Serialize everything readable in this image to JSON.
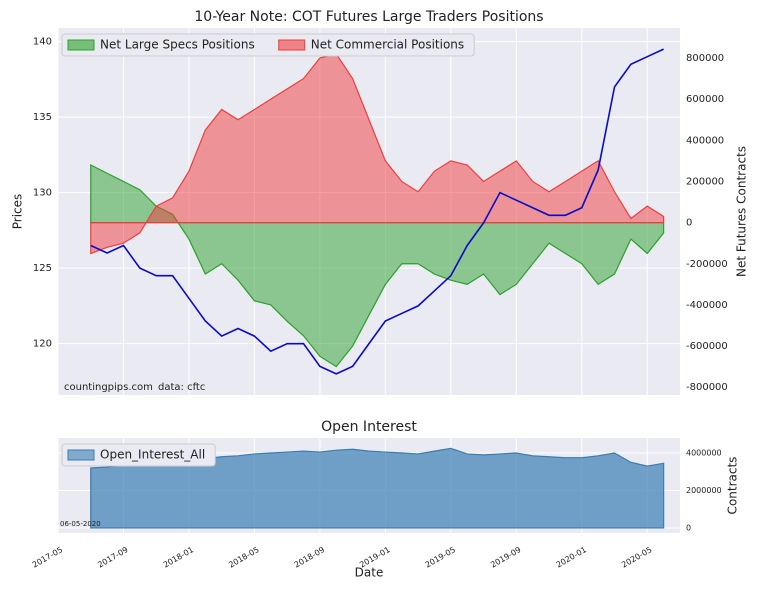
{
  "chart_data": [
    {
      "type": "area_line",
      "title": "10-Year Note: COT Futures Large Traders Positions",
      "ylabel": "Prices",
      "y2label": "Net Futures Contracts",
      "annotations": [
        "countingpips.com",
        "data: cftc"
      ],
      "legend": "upper left",
      "grid": true,
      "x": [
        "2017-07",
        "2017-08",
        "2017-09",
        "2017-10",
        "2017-11",
        "2017-12",
        "2018-01",
        "2018-02",
        "2018-03",
        "2018-04",
        "2018-05",
        "2018-06",
        "2018-07",
        "2018-08",
        "2018-09",
        "2018-10",
        "2018-11",
        "2018-12",
        "2019-01",
        "2019-02",
        "2019-03",
        "2019-04",
        "2019-05",
        "2019-06",
        "2019-07",
        "2019-08",
        "2019-09",
        "2019-10",
        "2019-11",
        "2019-12",
        "2020-01",
        "2020-02",
        "2020-03",
        "2020-04",
        "2020-05",
        "2020-06"
      ],
      "xlim": [
        "2017-05",
        "2020-07"
      ],
      "xticks": [
        "2017-05",
        "2017-09",
        "2018-01",
        "2018-05",
        "2018-09",
        "2019-01",
        "2019-05",
        "2019-09",
        "2020-01",
        "2020-05"
      ],
      "ylim": [
        116.6,
        140.9
      ],
      "yticks": [
        120,
        125,
        130,
        135,
        140
      ],
      "y2lim": [
        -838000,
        946000
      ],
      "y2ticks": [
        -800000,
        -600000,
        -400000,
        -200000,
        0,
        200000,
        400000,
        600000,
        800000
      ],
      "series": [
        {
          "kind": "line",
          "color": "#0a0ac8",
          "values": [
            126.5,
            126,
            126.5,
            125,
            124.5,
            124.5,
            123,
            121.5,
            120.5,
            121,
            120.5,
            119.5,
            120,
            120,
            118.5,
            118,
            118.5,
            120,
            121.5,
            122,
            122.5,
            123.5,
            124.5,
            126.5,
            128,
            130,
            129.5,
            129,
            128.5,
            128.5,
            129,
            131.5,
            137,
            138.5,
            139,
            139.5
          ]
        },
        {
          "kind": "area",
          "name": "Net Large Specs Positions",
          "color": "#2ca02c",
          "axis": "y2",
          "values": [
            280000,
            240000,
            200000,
            160000,
            80000,
            40000,
            -80000,
            -250000,
            -200000,
            -280000,
            -380000,
            -400000,
            -480000,
            -550000,
            -650000,
            -700000,
            -600000,
            -450000,
            -300000,
            -200000,
            -200000,
            -250000,
            -280000,
            -300000,
            -250000,
            -350000,
            -300000,
            -200000,
            -100000,
            -150000,
            -200000,
            -300000,
            -250000,
            -80000,
            -150000,
            -50000
          ]
        },
        {
          "kind": "area",
          "name": "Net Commercial Positions",
          "color": "#f03c3c",
          "axis": "y2",
          "values": [
            -150000,
            -120000,
            -100000,
            -50000,
            80000,
            120000,
            250000,
            450000,
            550000,
            500000,
            550000,
            600000,
            650000,
            700000,
            800000,
            820000,
            700000,
            500000,
            300000,
            200000,
            150000,
            250000,
            300000,
            280000,
            200000,
            250000,
            300000,
            200000,
            150000,
            200000,
            250000,
            300000,
            150000,
            20000,
            80000,
            30000
          ]
        }
      ]
    },
    {
      "type": "area",
      "title": "Open Interest",
      "y2label": "Contracts",
      "xlabel": "Date",
      "annotations": [
        "06-05-2020"
      ],
      "legend": "upper left",
      "grid": true,
      "x": [
        "2017-07",
        "2017-08",
        "2017-09",
        "2017-10",
        "2017-11",
        "2017-12",
        "2018-01",
        "2018-02",
        "2018-03",
        "2018-04",
        "2018-05",
        "2018-06",
        "2018-07",
        "2018-08",
        "2018-09",
        "2018-10",
        "2018-11",
        "2018-12",
        "2019-01",
        "2019-02",
        "2019-03",
        "2019-04",
        "2019-05",
        "2019-06",
        "2019-07",
        "2019-08",
        "2019-09",
        "2019-10",
        "2019-11",
        "2019-12",
        "2020-01",
        "2020-02",
        "2020-03",
        "2020-04",
        "2020-05",
        "2020-06"
      ],
      "xlim": [
        "2017-05",
        "2020-07"
      ],
      "xticks": [
        "2017-05",
        "2017-09",
        "2018-01",
        "2018-05",
        "2018-09",
        "2019-01",
        "2019-05",
        "2019-09",
        "2020-01",
        "2020-05"
      ],
      "y2lim": [
        -270000,
        4800000
      ],
      "y2ticks": [
        0,
        2000000,
        4000000
      ],
      "series": [
        {
          "kind": "area",
          "name": "Open_Interest_All",
          "color": "#3a7db3",
          "axis": "y2",
          "values": [
            3200000,
            3250000,
            3350000,
            3400000,
            3500000,
            3600000,
            3750000,
            3700000,
            3800000,
            3850000,
            3950000,
            4000000,
            4050000,
            4100000,
            4050000,
            4150000,
            4200000,
            4100000,
            4050000,
            4000000,
            3950000,
            4100000,
            4250000,
            3950000,
            3900000,
            3950000,
            4000000,
            3850000,
            3800000,
            3750000,
            3750000,
            3850000,
            4000000,
            3500000,
            3300000,
            3450000
          ]
        }
      ]
    }
  ]
}
